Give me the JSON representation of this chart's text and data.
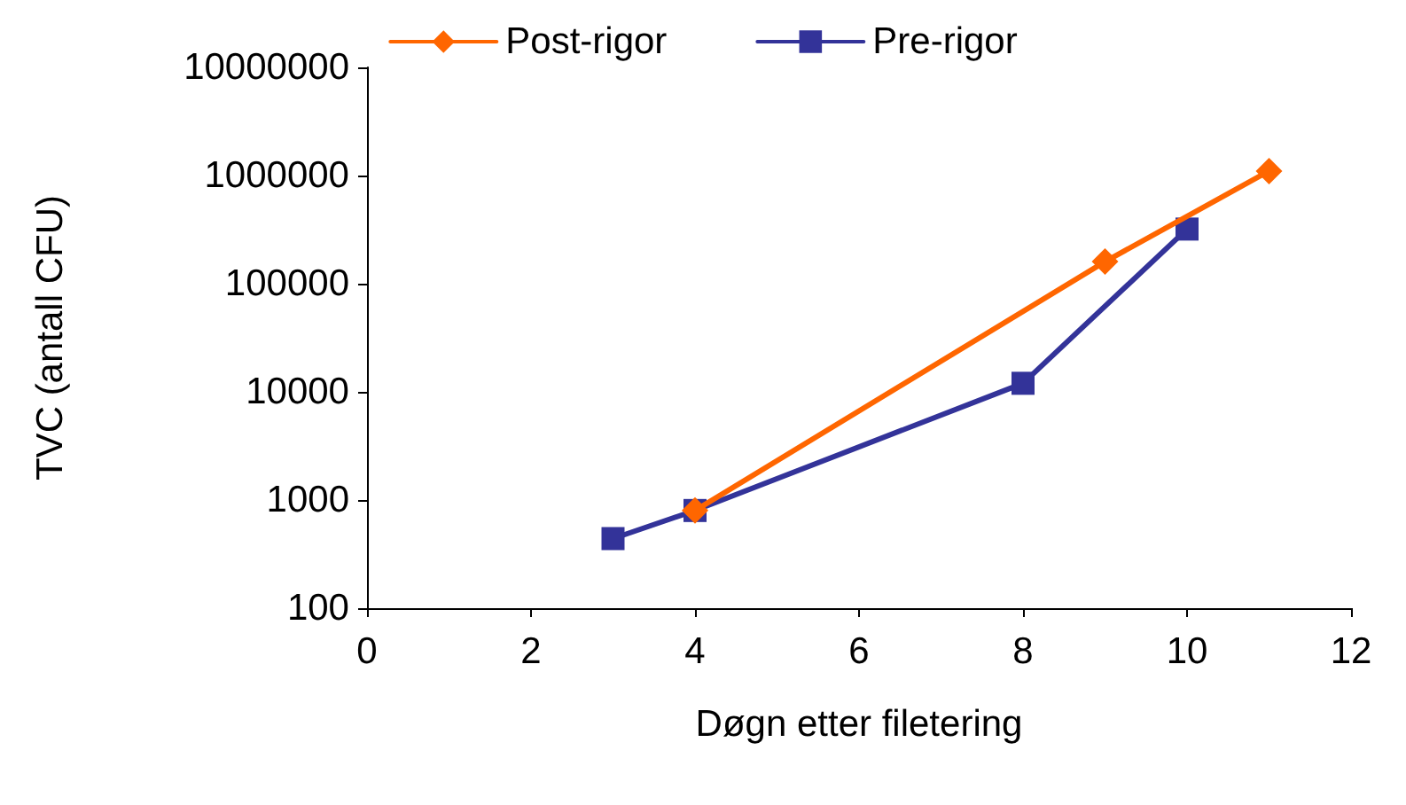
{
  "chart_data": {
    "type": "line",
    "xlabel": "Døgn etter filetering",
    "ylabel": "TVC (antall CFU)",
    "log": "y",
    "xlim": [
      0,
      12
    ],
    "xticks": [
      0,
      2,
      4,
      6,
      8,
      10,
      12
    ],
    "ylim": [
      100,
      10000000
    ],
    "yticks": [
      100,
      1000,
      10000,
      100000,
      1000000,
      10000000
    ],
    "grid": false,
    "legend": "top",
    "line_style": "solid",
    "series": [
      {
        "name": "Post-rigor",
        "color": "#ff6600",
        "marker": "diamond",
        "x": [
          4,
          9,
          11
        ],
        "values": [
          800,
          160000,
          1100000
        ]
      },
      {
        "name": "Pre-rigor",
        "color": "#333399",
        "marker": "square",
        "x": [
          3,
          4,
          8,
          10
        ],
        "values": [
          440,
          800,
          12000,
          320000
        ]
      }
    ]
  }
}
